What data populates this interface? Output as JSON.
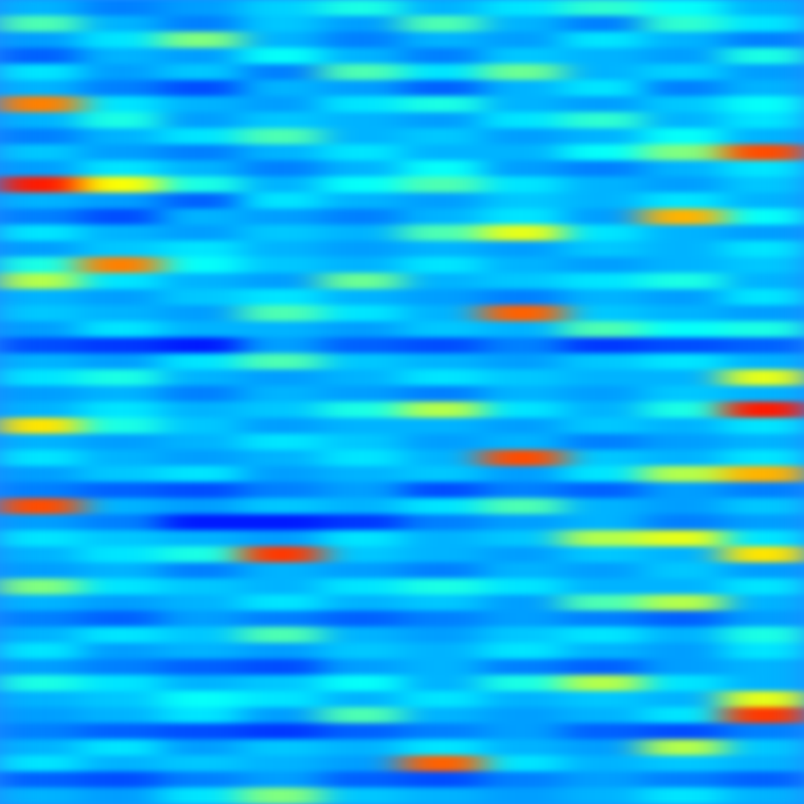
{
  "chart_data": {
    "type": "heatmap",
    "zlim": [
      0,
      1
    ],
    "tick_labels": false,
    "cells": [
      [
        0.3,
        0.25,
        0.28,
        0.33,
        0.4,
        0.3,
        0.35,
        0.42,
        0.38,
        0.3
      ],
      [
        0.45,
        0.3,
        0.25,
        0.32,
        0.28,
        0.45,
        0.3,
        0.25,
        0.42,
        0.35
      ],
      [
        0.28,
        0.35,
        0.5,
        0.3,
        0.25,
        0.3,
        0.28,
        0.35,
        0.3,
        0.25
      ],
      [
        0.22,
        0.3,
        0.28,
        0.38,
        0.3,
        0.25,
        0.32,
        0.3,
        0.28,
        0.4
      ],
      [
        0.35,
        0.28,
        0.32,
        0.25,
        0.45,
        0.35,
        0.48,
        0.3,
        0.33,
        0.28
      ],
      [
        0.3,
        0.25,
        0.2,
        0.3,
        0.28,
        0.22,
        0.3,
        0.35,
        0.25,
        0.3
      ],
      [
        0.75,
        0.35,
        0.3,
        0.28,
        0.35,
        0.4,
        0.3,
        0.28,
        0.32,
        0.38
      ],
      [
        0.3,
        0.4,
        0.28,
        0.32,
        0.3,
        0.28,
        0.35,
        0.42,
        0.3,
        0.35
      ],
      [
        0.25,
        0.3,
        0.35,
        0.45,
        0.3,
        0.32,
        0.28,
        0.3,
        0.38,
        0.3
      ],
      [
        0.32,
        0.28,
        0.25,
        0.3,
        0.35,
        0.3,
        0.3,
        0.38,
        0.5,
        0.8
      ],
      [
        0.28,
        0.35,
        0.3,
        0.25,
        0.3,
        0.38,
        0.28,
        0.25,
        0.3,
        0.35
      ],
      [
        0.85,
        0.62,
        0.4,
        0.3,
        0.38,
        0.45,
        0.35,
        0.3,
        0.28,
        0.32
      ],
      [
        0.3,
        0.28,
        0.22,
        0.35,
        0.3,
        0.28,
        0.32,
        0.3,
        0.35,
        0.3
      ],
      [
        0.25,
        0.2,
        0.3,
        0.28,
        0.25,
        0.3,
        0.35,
        0.28,
        0.7,
        0.38
      ],
      [
        0.35,
        0.3,
        0.28,
        0.32,
        0.3,
        0.45,
        0.6,
        0.35,
        0.3,
        0.28
      ],
      [
        0.28,
        0.32,
        0.35,
        0.3,
        0.28,
        0.3,
        0.28,
        0.32,
        0.3,
        0.35
      ],
      [
        0.4,
        0.75,
        0.38,
        0.32,
        0.3,
        0.35,
        0.3,
        0.28,
        0.3,
        0.32
      ],
      [
        0.55,
        0.35,
        0.3,
        0.28,
        0.48,
        0.3,
        0.32,
        0.35,
        0.4,
        0.3
      ],
      [
        0.3,
        0.28,
        0.32,
        0.35,
        0.3,
        0.28,
        0.25,
        0.3,
        0.28,
        0.35
      ],
      [
        0.32,
        0.3,
        0.28,
        0.45,
        0.35,
        0.3,
        0.78,
        0.32,
        0.3,
        0.28
      ],
      [
        0.28,
        0.35,
        0.3,
        0.3,
        0.28,
        0.32,
        0.3,
        0.45,
        0.38,
        0.4
      ],
      [
        0.2,
        0.18,
        0.15,
        0.28,
        0.22,
        0.2,
        0.25,
        0.18,
        0.2,
        0.22
      ],
      [
        0.3,
        0.28,
        0.35,
        0.45,
        0.32,
        0.3,
        0.28,
        0.32,
        0.35,
        0.3
      ],
      [
        0.35,
        0.4,
        0.3,
        0.28,
        0.3,
        0.35,
        0.32,
        0.3,
        0.3,
        0.6
      ],
      [
        0.28,
        0.3,
        0.25,
        0.3,
        0.28,
        0.25,
        0.3,
        0.28,
        0.32,
        0.3
      ],
      [
        0.3,
        0.35,
        0.3,
        0.32,
        0.4,
        0.55,
        0.35,
        0.3,
        0.4,
        0.85
      ],
      [
        0.65,
        0.4,
        0.32,
        0.28,
        0.3,
        0.3,
        0.28,
        0.32,
        0.3,
        0.35
      ],
      [
        0.3,
        0.28,
        0.3,
        0.35,
        0.32,
        0.28,
        0.3,
        0.25,
        0.28,
        0.3
      ],
      [
        0.35,
        0.3,
        0.28,
        0.3,
        0.35,
        0.3,
        0.8,
        0.32,
        0.3,
        0.35
      ],
      [
        0.28,
        0.32,
        0.35,
        0.28,
        0.3,
        0.32,
        0.28,
        0.35,
        0.55,
        0.7
      ],
      [
        0.25,
        0.22,
        0.2,
        0.25,
        0.28,
        0.2,
        0.25,
        0.22,
        0.28,
        0.25
      ],
      [
        0.8,
        0.3,
        0.28,
        0.32,
        0.3,
        0.35,
        0.45,
        0.3,
        0.28,
        0.32
      ],
      [
        0.28,
        0.25,
        0.15,
        0.15,
        0.18,
        0.25,
        0.28,
        0.3,
        0.25,
        0.28
      ],
      [
        0.35,
        0.32,
        0.3,
        0.28,
        0.35,
        0.3,
        0.32,
        0.55,
        0.6,
        0.35
      ],
      [
        0.3,
        0.35,
        0.4,
        0.82,
        0.32,
        0.3,
        0.28,
        0.32,
        0.3,
        0.65
      ],
      [
        0.28,
        0.3,
        0.25,
        0.3,
        0.28,
        0.25,
        0.3,
        0.28,
        0.32,
        0.28
      ],
      [
        0.5,
        0.35,
        0.32,
        0.3,
        0.35,
        0.4,
        0.35,
        0.3,
        0.3,
        0.35
      ],
      [
        0.3,
        0.28,
        0.3,
        0.35,
        0.3,
        0.32,
        0.28,
        0.45,
        0.55,
        0.3
      ],
      [
        0.25,
        0.22,
        0.28,
        0.25,
        0.22,
        0.25,
        0.28,
        0.25,
        0.22,
        0.28
      ],
      [
        0.3,
        0.35,
        0.32,
        0.45,
        0.3,
        0.28,
        0.32,
        0.35,
        0.3,
        0.4
      ],
      [
        0.35,
        0.28,
        0.3,
        0.28,
        0.32,
        0.3,
        0.35,
        0.3,
        0.28,
        0.35
      ],
      [
        0.28,
        0.25,
        0.22,
        0.2,
        0.28,
        0.3,
        0.25,
        0.22,
        0.28,
        0.3
      ],
      [
        0.4,
        0.35,
        0.3,
        0.32,
        0.38,
        0.3,
        0.4,
        0.55,
        0.35,
        0.3
      ],
      [
        0.3,
        0.32,
        0.38,
        0.35,
        0.3,
        0.35,
        0.3,
        0.32,
        0.3,
        0.6
      ],
      [
        0.28,
        0.3,
        0.35,
        0.28,
        0.45,
        0.3,
        0.28,
        0.3,
        0.35,
        0.82
      ],
      [
        0.25,
        0.22,
        0.2,
        0.18,
        0.22,
        0.25,
        0.28,
        0.22,
        0.2,
        0.25
      ],
      [
        0.3,
        0.35,
        0.28,
        0.32,
        0.3,
        0.35,
        0.3,
        0.28,
        0.55,
        0.32
      ],
      [
        0.35,
        0.3,
        0.32,
        0.3,
        0.28,
        0.78,
        0.35,
        0.3,
        0.32,
        0.3
      ],
      [
        0.22,
        0.2,
        0.25,
        0.28,
        0.22,
        0.2,
        0.25,
        0.28,
        0.25,
        0.22
      ],
      [
        0.3,
        0.28,
        0.35,
        0.5,
        0.32,
        0.3,
        0.28,
        0.3,
        0.35,
        0.3
      ]
    ]
  }
}
